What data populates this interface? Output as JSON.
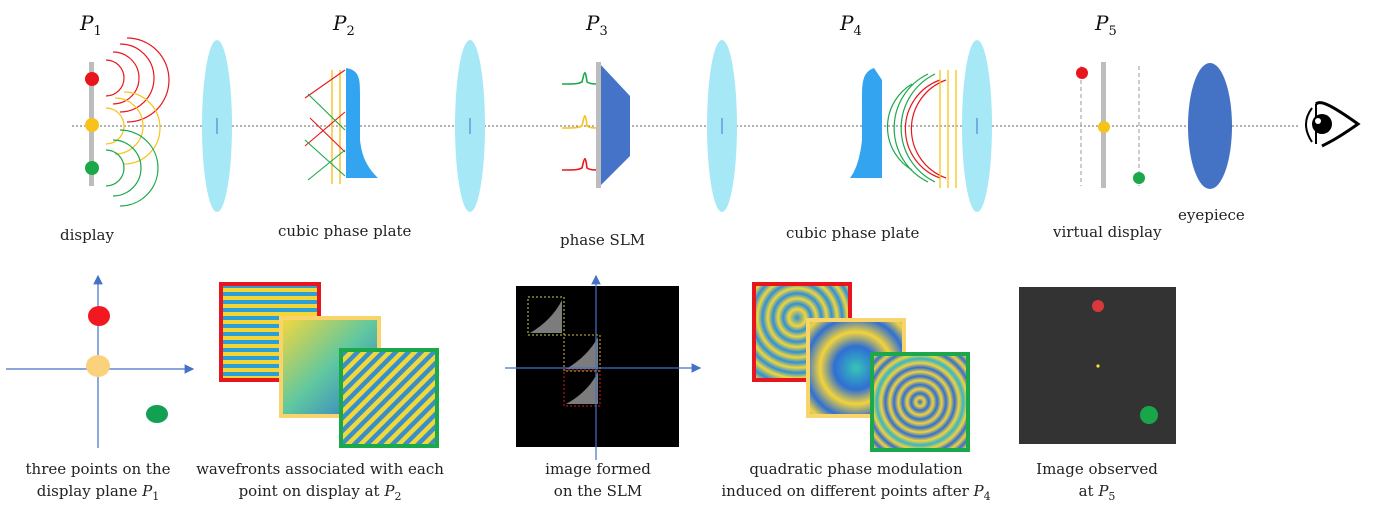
{
  "planes": [
    {
      "symbol": "P",
      "index": "1"
    },
    {
      "symbol": "P",
      "index": "2"
    },
    {
      "symbol": "P",
      "index": "3"
    },
    {
      "symbol": "P",
      "index": "4"
    },
    {
      "symbol": "P",
      "index": "5"
    }
  ],
  "top_labels": {
    "display": "display",
    "cubic1": "cubic phase plate",
    "slm": "phase SLM",
    "cubic2": "cubic phase plate",
    "virtual": "virtual display",
    "eyepiece": "eyepiece"
  },
  "bottom_captions": {
    "c1_line1": "three points on the",
    "c1_line2": "display plane ",
    "c1_sym": "P",
    "c1_idx": "1",
    "c2_line1": "wavefronts associated with each",
    "c2_line2": "point on display at ",
    "c2_sym": "P",
    "c2_idx": "2",
    "c3_line1": "image formed",
    "c3_line2": "on the SLM",
    "c4_line1": "quadratic phase modulation",
    "c4_line2": "induced on different points after ",
    "c4_sym": "P",
    "c4_idx": "4",
    "c5_line1": "Image observed",
    "c5_line2": "at ",
    "c5_sym": "P",
    "c5_idx": "5"
  },
  "colors": {
    "red": "#e8161c",
    "yellow": "#f7c21a",
    "green": "#1aa84a",
    "lens": "#a7e8f7",
    "eyepiece": "#4472c4",
    "plate": "#33a4f0",
    "slm": "#4573c7",
    "axis": "#4472c4"
  },
  "icons": {
    "eye": "eye-icon"
  }
}
